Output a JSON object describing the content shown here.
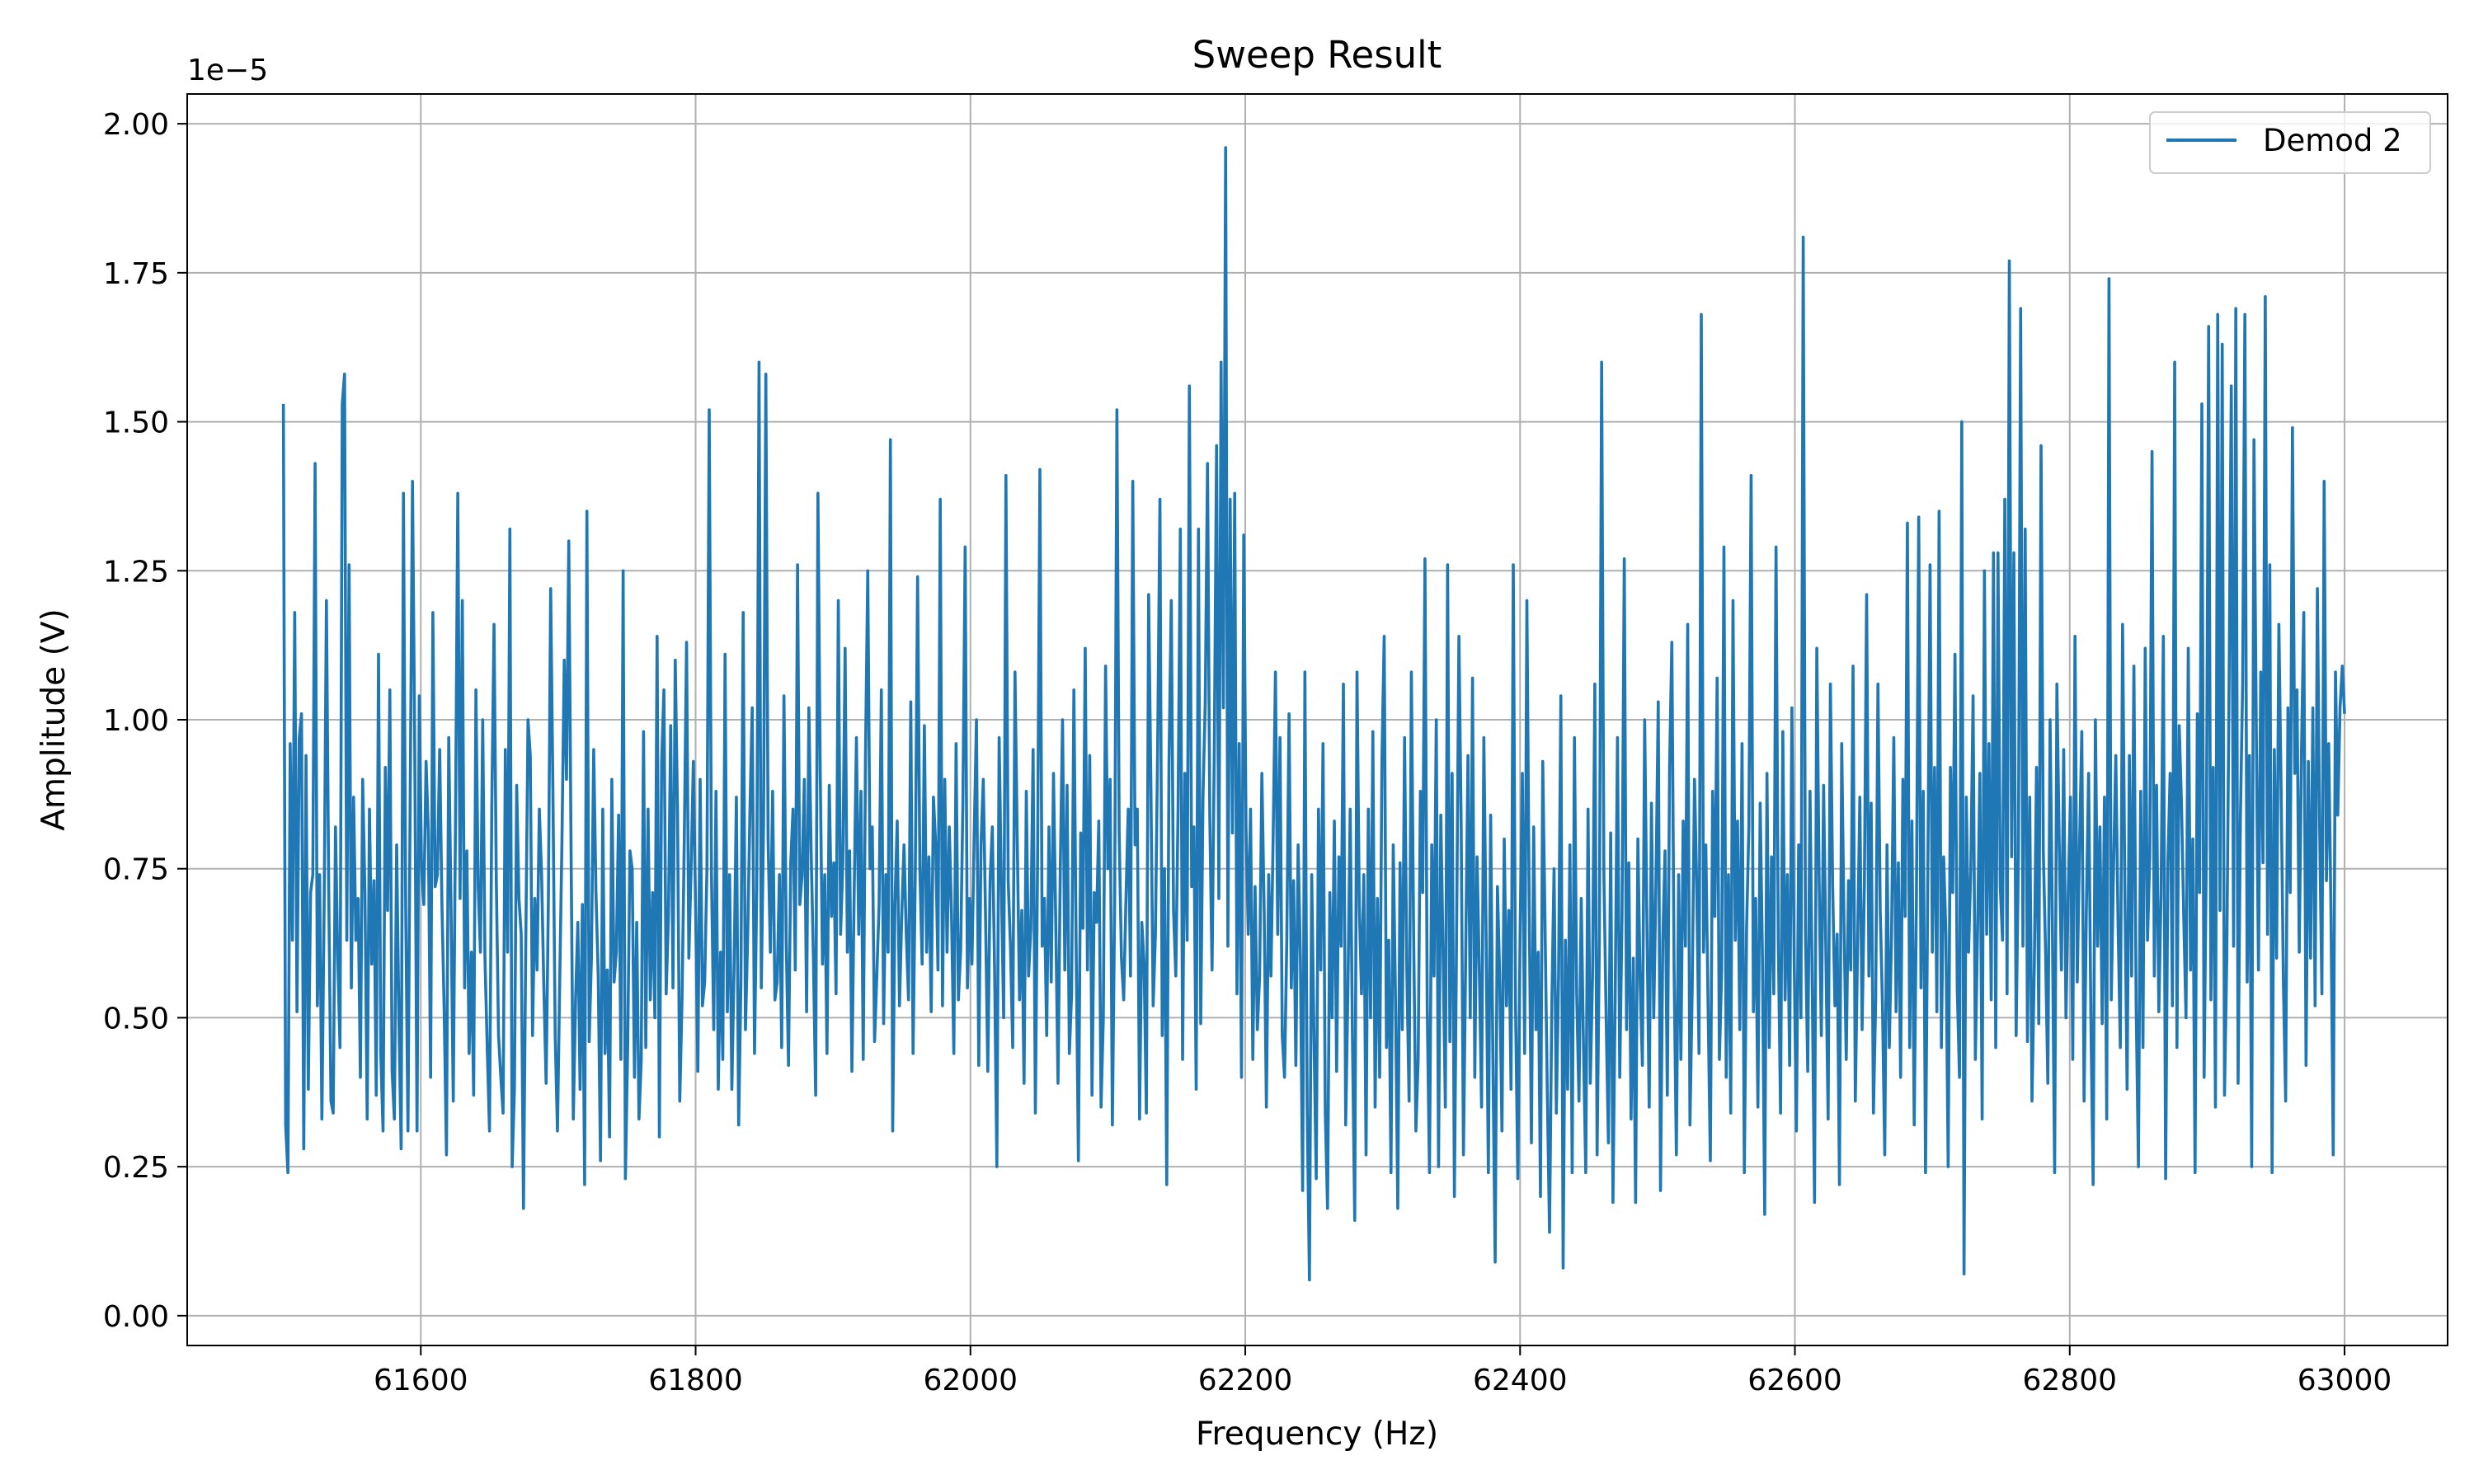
{
  "chart_data": {
    "type": "line",
    "title": "Sweep Result",
    "xlabel": "Frequency (Hz)",
    "ylabel": "Amplitude (V)",
    "y_offset_label": "1e−5",
    "y_scale": 1e-05,
    "xlim": [
      61430,
      63075
    ],
    "ylim": [
      -0.05,
      2.05
    ],
    "xticks": [
      61600,
      61800,
      62000,
      62200,
      62400,
      62600,
      62800,
      63000
    ],
    "xtick_labels": [
      "61600",
      "61800",
      "62000",
      "62200",
      "62400",
      "62600",
      "62800",
      "63000"
    ],
    "yticks": [
      0.0,
      0.25,
      0.5,
      0.75,
      1.0,
      1.25,
      1.5,
      1.75,
      2.0
    ],
    "ytick_labels": [
      "0.00",
      "0.25",
      "0.50",
      "0.75",
      "1.00",
      "1.25",
      "1.50",
      "1.75",
      "2.00"
    ],
    "grid": true,
    "legend_position": "top-right",
    "color": "#1f77b4",
    "series": [
      {
        "name": "Demod 2",
        "x_start": 61500,
        "x_end": 63000,
        "n_points": 1001,
        "values": [
          1.53,
          0.32,
          0.24,
          0.96,
          0.63,
          1.18,
          0.51,
          0.97,
          1.01,
          0.28,
          0.94,
          0.38,
          0.71,
          0.74,
          1.43,
          0.52,
          0.74,
          0.33,
          0.69,
          1.2,
          0.72,
          0.36,
          0.34,
          0.82,
          0.6,
          0.45,
          1.53,
          1.58,
          0.63,
          1.26,
          0.55,
          0.87,
          0.63,
          0.7,
          0.4,
          0.9,
          0.71,
          0.33,
          0.85,
          0.59,
          0.73,
          0.37,
          1.11,
          0.44,
          0.31,
          0.92,
          0.68,
          1.05,
          0.41,
          0.33,
          0.79,
          0.5,
          0.28,
          1.38,
          0.69,
          0.31,
          0.88,
          1.4,
          0.95,
          0.31,
          1.04,
          0.75,
          0.69,
          0.93,
          0.81,
          0.4,
          1.18,
          0.72,
          0.74,
          0.95,
          0.69,
          0.51,
          0.27,
          0.97,
          0.69,
          0.36,
          0.84,
          1.38,
          0.7,
          1.2,
          0.55,
          0.78,
          0.44,
          0.61,
          0.37,
          1.05,
          0.72,
          0.61,
          1.0,
          0.6,
          0.45,
          0.31,
          0.85,
          1.16,
          0.73,
          0.47,
          0.4,
          0.34,
          0.95,
          0.61,
          1.32,
          0.25,
          0.38,
          0.89,
          0.7,
          0.64,
          0.18,
          0.62,
          1.0,
          0.94,
          0.47,
          0.7,
          0.58,
          0.85,
          0.74,
          0.55,
          0.39,
          0.7,
          1.22,
          0.88,
          0.47,
          0.31,
          0.56,
          0.8,
          1.1,
          0.9,
          1.3,
          0.79,
          0.33,
          0.53,
          0.66,
          0.38,
          0.69,
          0.22,
          1.35,
          0.46,
          0.6,
          0.95,
          0.71,
          0.57,
          0.26,
          0.85,
          0.44,
          0.58,
          0.3,
          0.9,
          0.56,
          0.61,
          0.84,
          0.43,
          1.25,
          0.23,
          0.45,
          0.78,
          0.75,
          0.4,
          0.66,
          0.33,
          0.43,
          0.98,
          0.45,
          0.85,
          0.53,
          0.71,
          0.5,
          1.14,
          0.3,
          0.93,
          1.05,
          0.54,
          0.67,
          0.99,
          0.55,
          1.1,
          0.85,
          0.36,
          0.53,
          0.8,
          1.13,
          0.6,
          0.75,
          0.93,
          0.68,
          0.41,
          0.9,
          0.52,
          0.56,
          0.75,
          1.52,
          0.74,
          0.48,
          0.88,
          0.38,
          0.61,
          0.43,
          1.11,
          0.51,
          0.74,
          0.38,
          0.59,
          0.87,
          0.32,
          0.56,
          1.18,
          0.48,
          0.64,
          0.85,
          1.02,
          0.44,
          0.72,
          1.6,
          0.55,
          0.83,
          1.58,
          0.8,
          0.61,
          0.88,
          0.53,
          0.56,
          0.74,
          0.45,
          1.04,
          0.63,
          0.42,
          0.76,
          0.85,
          0.58,
          1.26,
          0.69,
          0.74,
          0.9,
          0.51,
          1.02,
          0.78,
          0.6,
          0.37,
          1.38,
          0.92,
          0.59,
          0.74,
          0.44,
          0.89,
          0.67,
          0.76,
          0.54,
          1.2,
          0.64,
          0.76,
          1.12,
          0.61,
          0.78,
          0.41,
          0.71,
          0.97,
          0.64,
          0.88,
          0.43,
          0.94,
          1.25,
          0.75,
          0.82,
          0.46,
          0.57,
          0.69,
          1.05,
          0.49,
          0.74,
          0.61,
          1.47,
          0.31,
          0.69,
          0.83,
          0.52,
          0.67,
          0.79,
          0.64,
          0.53,
          1.03,
          0.44,
          0.75,
          1.24,
          0.75,
          0.59,
          0.99,
          0.61,
          0.77,
          0.51,
          0.87,
          0.79,
          0.58,
          1.37,
          0.52,
          0.9,
          0.61,
          0.82,
          0.67,
          0.44,
          0.96,
          0.53,
          0.61,
          0.86,
          1.29,
          0.55,
          0.7,
          0.59,
          0.81,
          1.0,
          0.42,
          0.79,
          0.9,
          0.67,
          0.41,
          0.73,
          0.82,
          0.58,
          0.25,
          0.97,
          0.72,
          0.5,
          1.41,
          0.73,
          0.62,
          0.45,
          1.08,
          0.8,
          0.53,
          0.68,
          0.39,
          0.88,
          0.57,
          0.65,
          0.95,
          0.34,
          0.78,
          1.42,
          0.62,
          0.7,
          0.47,
          0.82,
          0.56,
          0.91,
          0.66,
          0.39,
          0.75,
          1.0,
          0.58,
          0.89,
          0.44,
          0.54,
          1.05,
          0.62,
          0.26,
          0.81,
          0.65,
          1.12,
          0.58,
          0.94,
          0.37,
          0.71,
          0.66,
          0.83,
          0.35,
          0.5,
          1.09,
          0.75,
          0.9,
          0.32,
          0.69,
          1.52,
          0.81,
          0.6,
          0.53,
          0.7,
          0.85,
          0.57,
          1.4,
          0.79,
          0.85,
          0.33,
          0.66,
          0.59,
          0.34,
          1.21,
          0.89,
          0.52,
          0.64,
          0.96,
          1.37,
          0.47,
          0.75,
          0.22,
          0.93,
          1.2,
          0.68,
          0.57,
          0.85,
          1.32,
          0.43,
          0.91,
          0.63,
          1.56,
          0.72,
          0.82,
          0.38,
          1.32,
          0.49,
          0.87,
          1.03,
          1.43,
          0.84,
          0.58,
          0.95,
          1.46,
          0.7,
          1.6,
          1.02,
          1.96,
          0.62,
          1.37,
          0.81,
          1.38,
          0.54,
          0.96,
          0.4,
          1.31,
          0.82,
          0.64,
          0.85,
          0.43,
          0.72,
          0.48,
          0.57,
          0.91,
          0.68,
          0.35,
          0.74,
          0.57,
          0.81,
          1.08,
          0.64,
          0.97,
          0.47,
          0.4,
          0.63,
          1.01,
          0.55,
          0.73,
          0.42,
          0.79,
          0.6,
          0.21,
          1.08,
          0.35,
          0.06,
          0.74,
          0.47,
          0.23,
          0.85,
          0.58,
          0.96,
          0.34,
          0.18,
          0.71,
          0.5,
          0.83,
          0.41,
          0.77,
          0.62,
          1.06,
          0.32,
          0.55,
          0.85,
          0.46,
          0.16,
          1.08,
          0.69,
          0.54,
          0.74,
          0.27,
          0.85,
          0.5,
          0.98,
          0.35,
          0.7,
          0.4,
          0.93,
          1.14,
          0.45,
          0.63,
          0.24,
          0.79,
          0.53,
          0.18,
          0.76,
          0.48,
          0.97,
          0.58,
          0.36,
          1.08,
          0.64,
          0.31,
          0.43,
          0.88,
          0.71,
          1.27,
          0.52,
          0.24,
          0.79,
          0.57,
          1.0,
          0.25,
          0.84,
          0.61,
          0.35,
          1.26,
          0.46,
          0.91,
          0.2,
          0.66,
          1.14,
          0.82,
          0.27,
          0.61,
          0.94,
          0.5,
          1.07,
          0.4,
          0.77,
          0.58,
          0.35,
          0.97,
          0.64,
          0.24,
          0.84,
          0.43,
          0.09,
          0.72,
          0.57,
          0.31,
          0.8,
          0.52,
          0.68,
          0.38,
          1.26,
          0.52,
          0.23,
          0.64,
          0.91,
          0.44,
          1.2,
          0.7,
          0.29,
          0.82,
          0.48,
          0.61,
          0.2,
          0.93,
          0.66,
          0.38,
          0.14,
          0.52,
          0.75,
          0.34,
          0.57,
          1.04,
          0.08,
          0.63,
          0.38,
          0.79,
          0.24,
          0.97,
          0.54,
          0.36,
          0.7,
          0.45,
          0.24,
          0.85,
          0.39,
          0.57,
          1.06,
          0.27,
          0.63,
          1.6,
          0.74,
          0.5,
          0.29,
          0.81,
          0.19,
          0.54,
          0.97,
          0.4,
          0.67,
          1.27,
          0.48,
          0.76,
          0.33,
          0.6,
          0.19,
          0.8,
          0.56,
          0.42,
          1.0,
          0.66,
          0.35,
          0.86,
          0.5,
          0.73,
          1.03,
          0.21,
          0.63,
          0.78,
          0.37,
          0.92,
          1.13,
          0.58,
          0.27,
          0.74,
          0.43,
          0.83,
          0.62,
          1.16,
          0.32,
          0.55,
          0.9,
          0.72,
          0.44,
          1.68,
          0.61,
          0.79,
          0.52,
          0.26,
          0.88,
          0.67,
          1.07,
          0.43,
          0.58,
          1.29,
          0.4,
          0.74,
          0.34,
          1.2,
          0.63,
          0.83,
          0.48,
          0.96,
          0.24,
          0.65,
          0.82,
          1.41,
          0.51,
          0.7,
          0.35,
          0.86,
          0.6,
          0.17,
          0.91,
          0.45,
          0.77,
          0.54,
          1.29,
          0.63,
          0.34,
          0.98,
          0.53,
          0.74,
          0.42,
          1.02,
          0.6,
          0.31,
          0.79,
          0.5,
          1.81,
          0.64,
          0.41,
          0.88,
          0.55,
          0.19,
          1.12,
          0.74,
          0.47,
          0.89,
          0.61,
          0.33,
          1.06,
          0.72,
          0.52,
          0.64,
          0.22,
          0.96,
          0.66,
          0.43,
          0.73,
          0.58,
          1.09,
          0.36,
          0.62,
          0.87,
          0.48,
          0.72,
          1.21,
          0.57,
          0.86,
          0.34,
          0.53,
          1.06,
          0.68,
          0.52,
          0.27,
          0.79,
          0.45,
          0.64,
          0.97,
          0.51,
          0.76,
          0.4,
          0.9,
          0.67,
          1.33,
          0.45,
          0.83,
          0.32,
          0.71,
          1.34,
          0.55,
          0.88,
          0.24,
          0.73,
          1.26,
          0.61,
          0.92,
          0.51,
          1.35,
          0.45,
          0.77,
          0.64,
          0.25,
          0.92,
          0.71,
          1.11,
          0.55,
          0.4,
          1.5,
          0.07,
          0.87,
          0.61,
          0.75,
          1.04,
          0.43,
          0.65,
          0.91,
          0.33,
          1.25,
          0.64,
          0.96,
          0.53,
          1.28,
          0.45,
          1.28,
          0.72,
          0.63,
          1.37,
          0.54,
          1.77,
          0.77,
          1.28,
          0.47,
          0.77,
          1.69,
          0.62,
          1.32,
          0.46,
          0.87,
          0.36,
          0.58,
          0.92,
          0.49,
          1.46,
          0.78,
          0.61,
          0.39,
          1.0,
          0.66,
          0.24,
          1.06,
          0.8,
          0.58,
          0.95,
          0.5,
          0.71,
          0.87,
          0.43,
          1.14,
          0.56,
          0.79,
          0.98,
          0.36,
          0.68,
          0.91,
          0.5,
          0.22,
          1.0,
          0.62,
          0.82,
          0.49,
          0.87,
          0.33,
          1.74,
          0.53,
          0.75,
          0.94,
          0.66,
          0.45,
          1.16,
          0.72,
          0.38,
          0.94,
          0.57,
          1.09,
          0.52,
          0.25,
          0.88,
          0.45,
          1.12,
          0.63,
          0.77,
          1.45,
          0.57,
          0.89,
          0.51,
          0.71,
          1.14,
          0.23,
          0.76,
          0.91,
          0.52,
          1.6,
          0.45,
          0.99,
          0.86,
          0.67,
          0.5,
          1.12,
          0.58,
          0.8,
          0.24,
          1.01,
          0.71,
          1.53,
          0.4,
          0.79,
          1.66,
          0.53,
          0.92,
          0.35,
          1.68,
          0.68,
          1.63,
          0.37,
          0.6,
          1.05,
          1.56,
          0.62,
          1.69,
          0.39,
          0.83,
          1.06,
          1.68,
          0.56,
          0.94,
          0.25,
          1.47,
          1.0,
          0.58,
          1.08,
          0.76,
          1.71,
          0.64,
          1.26,
          0.24,
          0.95,
          0.6,
          1.16,
          0.88,
          0.56,
          0.36,
          1.02,
          0.71,
          1.49,
          0.91,
          1.05,
          0.61,
          0.95,
          1.18,
          0.42,
          0.93,
          0.6,
          1.02,
          0.52,
          1.22,
          0.82,
          0.54,
          1.4,
          0.73,
          0.96,
          0.68,
          0.27,
          1.08,
          0.84,
          1.02,
          1.09,
          1.01
        ]
      }
    ]
  }
}
